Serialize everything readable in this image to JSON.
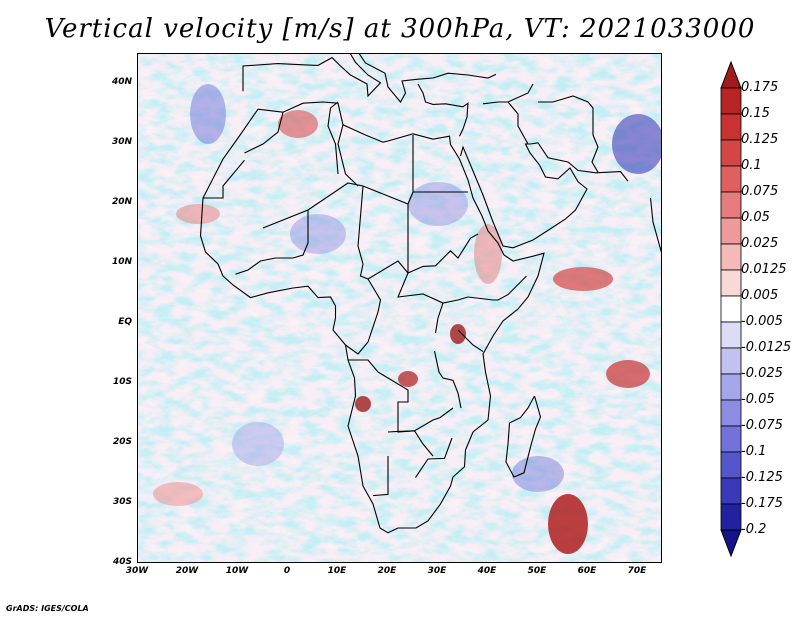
{
  "title": "Vertical velocity [m/s] at 300hPa, VT: 2021033000",
  "credit": "GrADS: IGES/COLA",
  "map": {
    "lat_labels": [
      "40N",
      "30N",
      "20N",
      "10N",
      "EQ",
      "10S",
      "20S",
      "30S",
      "40S"
    ],
    "lon_labels": [
      "30W",
      "20W",
      "10W",
      "0",
      "10E",
      "20E",
      "30E",
      "40E",
      "50E",
      "60E",
      "70E"
    ],
    "lat_range": [
      -40,
      45
    ],
    "lon_range": [
      -30,
      75
    ],
    "field": "vertical velocity",
    "level": "300hPa",
    "units": "m/s"
  },
  "colorbar": {
    "labels": [
      "0.175",
      "0.15",
      "0.125",
      "0.1",
      "0.075",
      "0.05",
      "0.025",
      "0.0125",
      "0.005",
      "-0.005",
      "-0.0125",
      "-0.025",
      "-0.05",
      "-0.075",
      "-0.1",
      "-0.125",
      "-0.175",
      "-0.2"
    ],
    "colors": [
      "#a01c1c",
      "#b82424",
      "#c83232",
      "#d44646",
      "#de6060",
      "#e67c7c",
      "#ee9a9a",
      "#f4baba",
      "#f9d8d8",
      "#ffffff",
      "#dcdcf6",
      "#c2c2f0",
      "#a6a6ea",
      "#8c8ce2",
      "#7272da",
      "#5656cc",
      "#3a3ab8",
      "#2222a0",
      "#14148a"
    ]
  }
}
